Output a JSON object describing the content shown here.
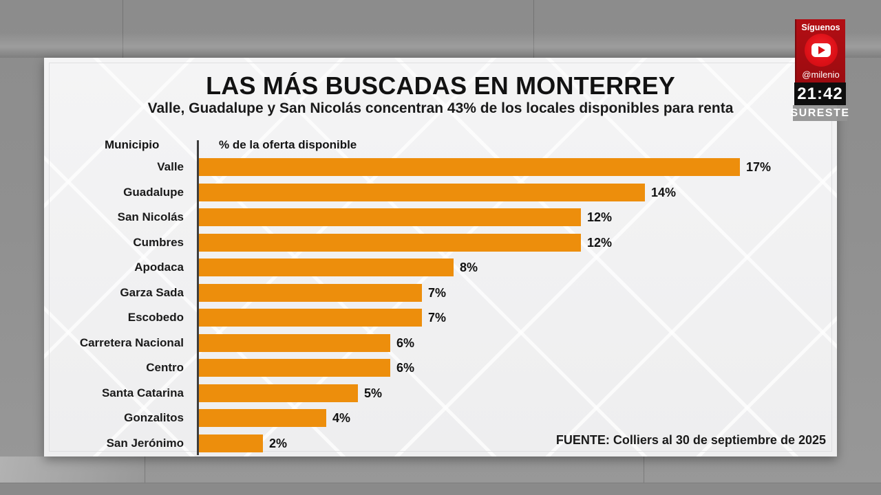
{
  "card": {
    "title": "LAS MÁS BUSCADAS EN MONTERREY",
    "subtitle": "Valle, Guadalupe y San Nicolás concentran 43% de los locales disponibles para renta",
    "col_header_left": "Municipio",
    "col_header_right": "% de la oferta disponible",
    "source": "FUENTE: Colliers al 30 de septiembre de 2025"
  },
  "chart_data": {
    "type": "bar",
    "orientation": "horizontal",
    "title": "LAS MÁS BUSCADAS EN MONTERREY",
    "xlabel": "% de la oferta disponible",
    "ylabel": "Municipio",
    "categories": [
      "Valle",
      "Guadalupe",
      "San Nicolás",
      "Cumbres",
      "Apodaca",
      "Garza Sada",
      "Escobedo",
      "Carretera Nacional",
      "Centro",
      "Santa Catarina",
      "Gonzalitos",
      "San Jerónimo"
    ],
    "values": [
      17,
      14,
      12,
      12,
      8,
      7,
      7,
      6,
      6,
      5,
      4,
      2
    ],
    "value_suffix": "%",
    "xlim": [
      0,
      20
    ],
    "grid": false,
    "legend": "none",
    "bar_color": "#ED8E0C",
    "axis_color": "#3d3d3d"
  },
  "overlay": {
    "follow_label": "Síguenos",
    "handle": "@milenio",
    "time": "21:42",
    "region": "SURESTE",
    "colors": {
      "badge_red": "#A50D12",
      "icon_red": "#DD1017"
    }
  }
}
